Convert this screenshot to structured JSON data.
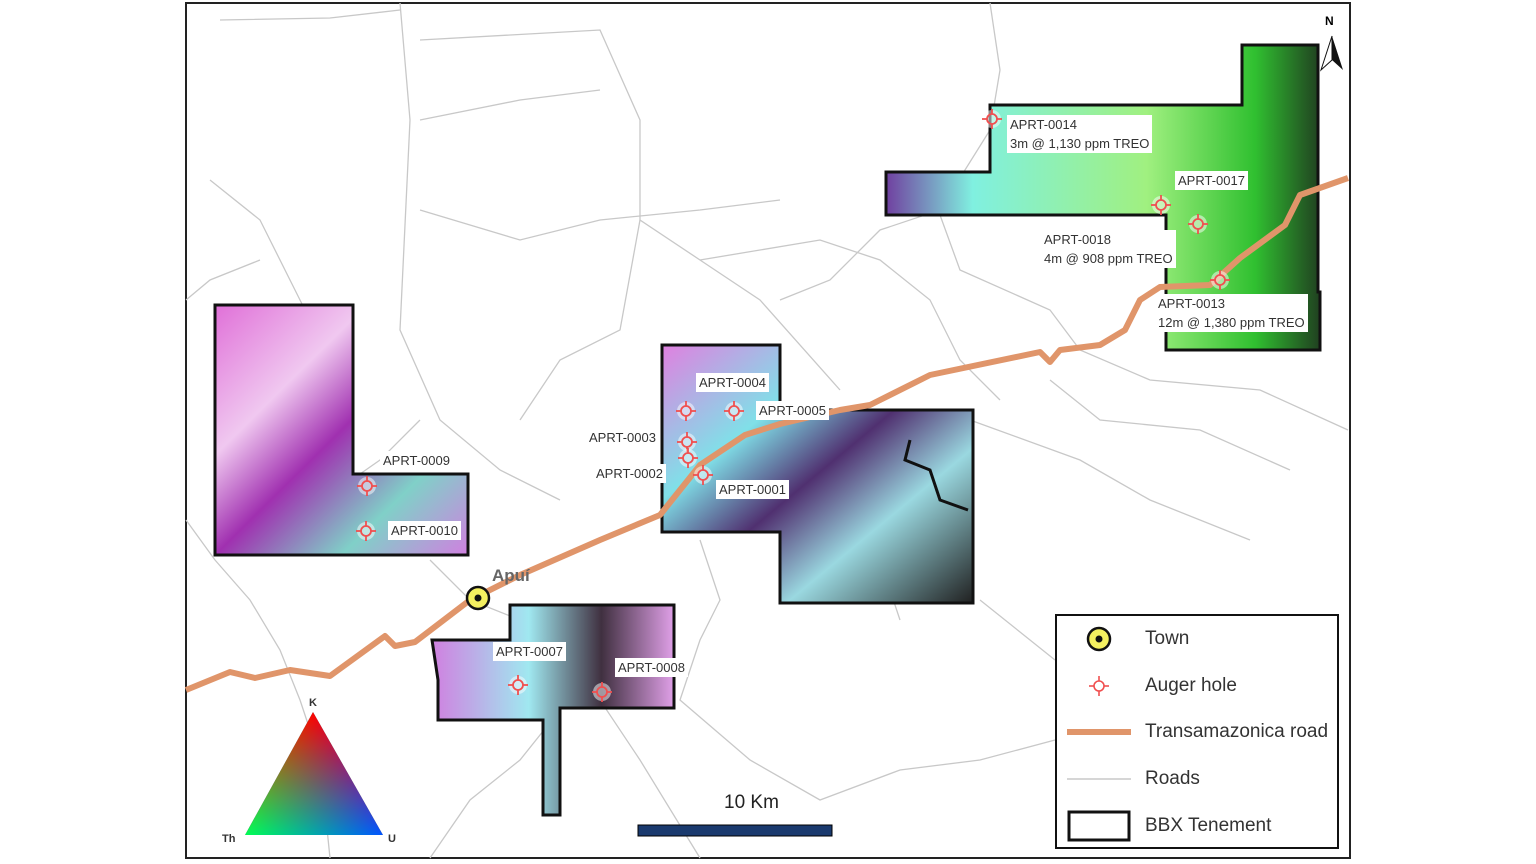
{
  "map": {
    "north_label": "N",
    "town": {
      "name": "Apuí"
    },
    "holes": [
      {
        "id": "APRT-0014",
        "result": "3m @ 1,130 ppm TREO"
      },
      {
        "id": "APRT-0017",
        "result": ""
      },
      {
        "id": "APRT-0018",
        "result": "4m @ 908 ppm TREO"
      },
      {
        "id": "APRT-0013",
        "result": "12m @ 1,380 ppm TREO"
      },
      {
        "id": "APRT-0004",
        "result": ""
      },
      {
        "id": "APRT-0005",
        "result": ""
      },
      {
        "id": "APRT-0003",
        "result": ""
      },
      {
        "id": "APRT-0002",
        "result": ""
      },
      {
        "id": "APRT-0001",
        "result": ""
      },
      {
        "id": "APRT-0009",
        "result": ""
      },
      {
        "id": "APRT-0010",
        "result": ""
      },
      {
        "id": "APRT-0007",
        "result": ""
      },
      {
        "id": "APRT-0008",
        "result": ""
      }
    ],
    "scale_bar": "10 Km",
    "ternary": {
      "top": "K",
      "left": "Th",
      "right": "U"
    },
    "colors": {
      "road": "#e0956a",
      "roads": "#c8c8c8",
      "hole": "#f05050",
      "town": "#f4f060",
      "scale": "#1a3a6e"
    }
  },
  "legend": {
    "items": [
      {
        "label": "Town",
        "icon": "town-icon"
      },
      {
        "label": "Auger hole",
        "icon": "auger-hole-icon"
      },
      {
        "label": "Transamazonica road",
        "icon": "road-line-icon"
      },
      {
        "label": "Roads",
        "icon": "roads-line-icon"
      },
      {
        "label": "BBX Tenement",
        "icon": "tenement-box-icon"
      }
    ]
  }
}
